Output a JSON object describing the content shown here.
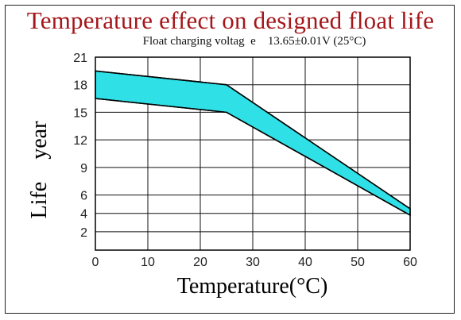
{
  "chart_data": {
    "type": "area",
    "title": "Temperature effect on designed  float life",
    "subtitle": "Float charging voltag  e    13.65±0.01V (25°C)",
    "xlabel": "Temperature(°C)",
    "ylabel": "Life    year",
    "x_ticks": [
      0,
      10,
      20,
      30,
      40,
      50,
      60
    ],
    "y_ticks": [
      2,
      4,
      6,
      9,
      12,
      15,
      18,
      21
    ],
    "xlim": [
      0,
      60
    ],
    "ylim": [
      0,
      21
    ],
    "grid": true,
    "fill_color": "#2fe0e6",
    "band": {
      "x": [
        0,
        25,
        60
      ],
      "upper": [
        19.5,
        18.0,
        4.5
      ],
      "lower": [
        16.5,
        15.0,
        3.8
      ]
    }
  }
}
